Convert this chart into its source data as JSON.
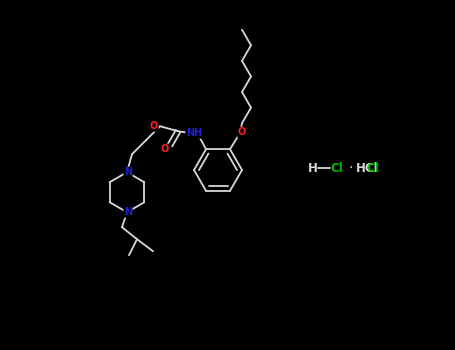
{
  "background_color": "#000000",
  "bond_color": "#d8d8d8",
  "atom_colors": {
    "O": "#ff2020",
    "N": "#2020cc",
    "Cl": "#00bb00",
    "H": "#d8d8d8",
    "C": "#d8d8d8"
  },
  "figsize": [
    4.55,
    3.5
  ],
  "dpi": 100,
  "lw": 1.3,
  "fs": 7.0
}
